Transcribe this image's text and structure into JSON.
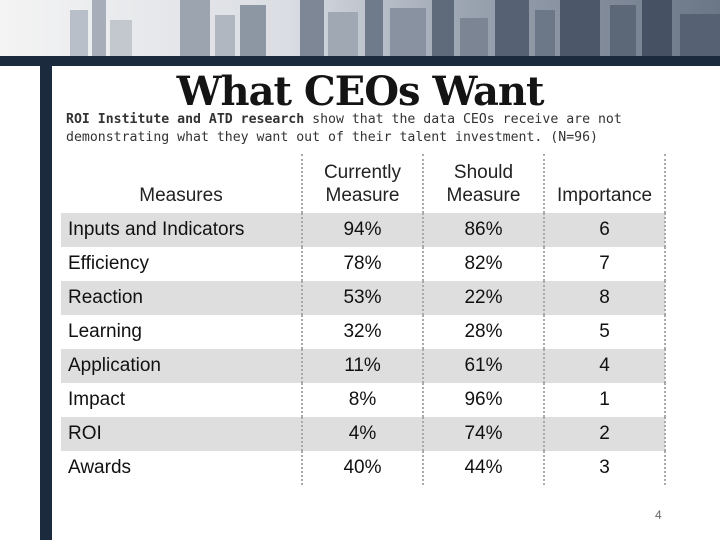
{
  "slide": {
    "title": "What CEOs Want",
    "subtitle_bold": "ROI Institute and ATD research",
    "subtitle_rest": " show that the data CEOs receive are not demonstrating what they want out of their talent investment. (N=96)",
    "page_number": "4"
  },
  "table": {
    "headers": [
      "Measures",
      "Currently Measure",
      "Should Measure",
      "Importance"
    ],
    "rows": [
      [
        "Inputs and Indicators",
        "94%",
        "86%",
        "6"
      ],
      [
        "Efficiency",
        "78%",
        "82%",
        "7"
      ],
      [
        "Reaction",
        "53%",
        "22%",
        "8"
      ],
      [
        "Learning",
        "32%",
        "28%",
        "5"
      ],
      [
        "Application",
        "11%",
        "61%",
        "4"
      ],
      [
        "Impact",
        "8%",
        "96%",
        "1"
      ],
      [
        "ROI",
        "4%",
        "74%",
        "2"
      ],
      [
        "Awards",
        "40%",
        "44%",
        "3"
      ]
    ]
  },
  "colors": {
    "frame": "#1c2a3d",
    "row_shade": "#dedede"
  }
}
